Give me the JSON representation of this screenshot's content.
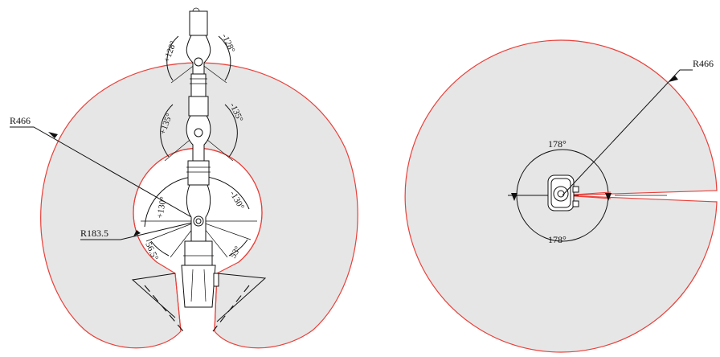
{
  "left_view": {
    "outer_radius_label": "R466",
    "inner_radius_label": "R183.5",
    "joint3_pos_label": "+128°",
    "joint3_neg_label": "-128°",
    "joint2_pos_label": "+135°",
    "joint2_neg_label": "-135°",
    "joint1_pos_label": "+130°",
    "joint1_neg_label": "-130°",
    "base_left_label": "56.5°",
    "base_right_label": "53°"
  },
  "right_view": {
    "outer_radius_label": "R466",
    "top_angle_label": "178°",
    "bottom_angle_label": "178°"
  },
  "colors": {
    "zone_fill": "#e6e6e6",
    "boundary": "#e8403a",
    "line": "#111111"
  }
}
